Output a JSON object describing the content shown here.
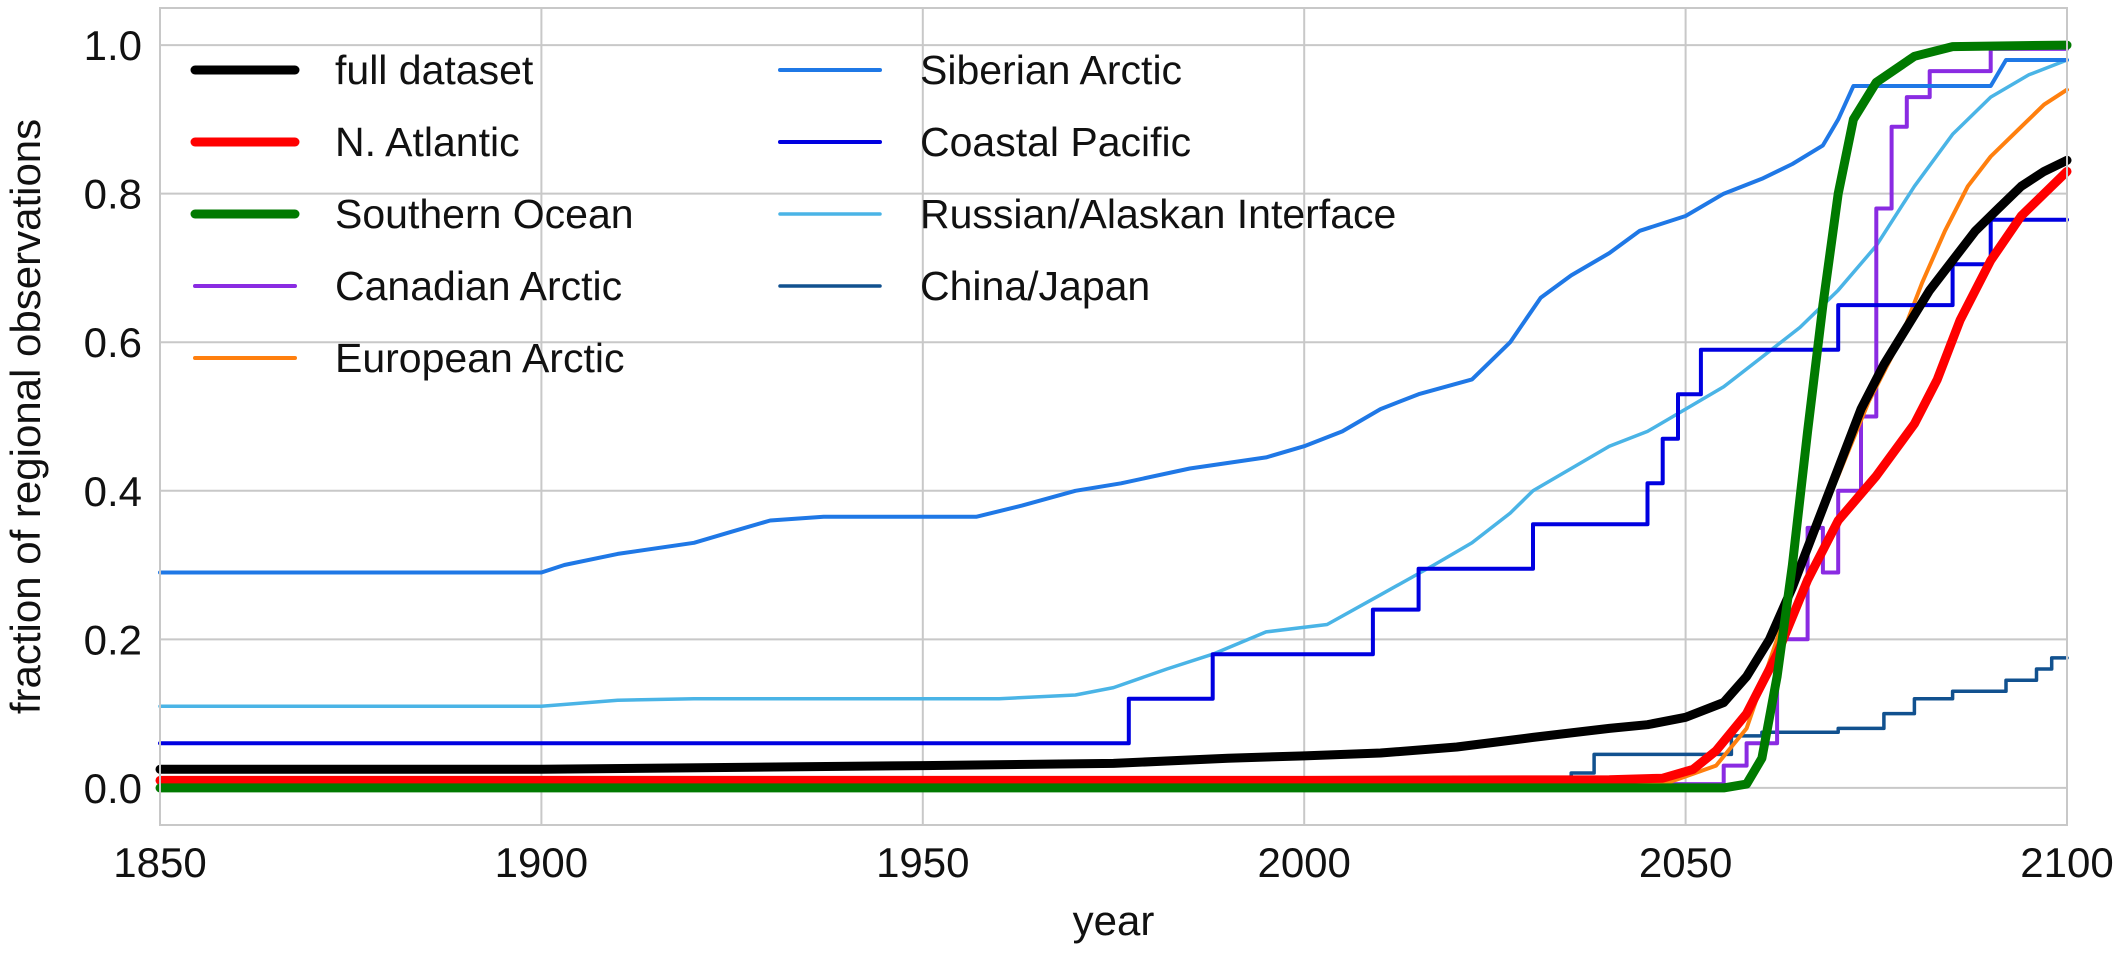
{
  "chart_data": {
    "type": "line",
    "title": "",
    "xlabel": "year",
    "ylabel": "fraction of regional observations",
    "xlim": [
      1850,
      2100
    ],
    "ylim": [
      -0.05,
      1.05
    ],
    "xticks": [
      1850,
      1900,
      1950,
      2000,
      2050,
      2100
    ],
    "yticks": [
      0.0,
      0.2,
      0.4,
      0.6,
      0.8,
      1.0
    ],
    "xtick_labels": [
      "1850",
      "1900",
      "1950",
      "2000",
      "2050",
      "2100"
    ],
    "ytick_labels": [
      "0.0",
      "0.2",
      "0.4",
      "0.6",
      "0.8",
      "1.0"
    ],
    "grid": true,
    "legend_position": "top-left",
    "series": [
      {
        "name": "full dataset",
        "color": "#000000",
        "width": 9,
        "step": false,
        "points": [
          [
            1850,
            0.025
          ],
          [
            1900,
            0.025
          ],
          [
            1950,
            0.03
          ],
          [
            1975,
            0.033
          ],
          [
            1990,
            0.04
          ],
          [
            2000,
            0.043
          ],
          [
            2010,
            0.047
          ],
          [
            2020,
            0.055
          ],
          [
            2030,
            0.068
          ],
          [
            2040,
            0.08
          ],
          [
            2045,
            0.085
          ],
          [
            2050,
            0.095
          ],
          [
            2055,
            0.115
          ],
          [
            2058,
            0.15
          ],
          [
            2061,
            0.2
          ],
          [
            2064,
            0.27
          ],
          [
            2067,
            0.35
          ],
          [
            2070,
            0.43
          ],
          [
            2073,
            0.51
          ],
          [
            2076,
            0.57
          ],
          [
            2079,
            0.62
          ],
          [
            2082,
            0.67
          ],
          [
            2085,
            0.71
          ],
          [
            2088,
            0.75
          ],
          [
            2091,
            0.78
          ],
          [
            2094,
            0.81
          ],
          [
            2097,
            0.83
          ],
          [
            2100,
            0.845
          ]
        ]
      },
      {
        "name": "N. Atlantic",
        "color": "#ff0000",
        "width": 9,
        "step": false,
        "points": [
          [
            1850,
            0.01
          ],
          [
            2000,
            0.01
          ],
          [
            2040,
            0.011
          ],
          [
            2047,
            0.013
          ],
          [
            2051,
            0.025
          ],
          [
            2054,
            0.05
          ],
          [
            2058,
            0.1
          ],
          [
            2062,
            0.18
          ],
          [
            2066,
            0.28
          ],
          [
            2070,
            0.36
          ],
          [
            2075,
            0.42
          ],
          [
            2080,
            0.49
          ],
          [
            2083,
            0.55
          ],
          [
            2086,
            0.63
          ],
          [
            2090,
            0.71
          ],
          [
            2094,
            0.77
          ],
          [
            2097,
            0.8
          ],
          [
            2100,
            0.83
          ]
        ]
      },
      {
        "name": "Southern Ocean",
        "color": "#007a00",
        "width": 9,
        "step": false,
        "points": [
          [
            1850,
            0.0
          ],
          [
            2055,
            0.0
          ],
          [
            2058,
            0.005
          ],
          [
            2060,
            0.04
          ],
          [
            2062,
            0.15
          ],
          [
            2064,
            0.3
          ],
          [
            2066,
            0.48
          ],
          [
            2068,
            0.65
          ],
          [
            2070,
            0.8
          ],
          [
            2072,
            0.9
          ],
          [
            2075,
            0.95
          ],
          [
            2080,
            0.985
          ],
          [
            2085,
            0.998
          ],
          [
            2100,
            1.0
          ]
        ]
      },
      {
        "name": "Canadian Arctic",
        "color": "#8a2be2",
        "width": 4,
        "step": true,
        "points": [
          [
            1850,
            0.005
          ],
          [
            2030,
            0.005
          ],
          [
            2055,
            0.005
          ],
          [
            2055,
            0.03
          ],
          [
            2058,
            0.03
          ],
          [
            2058,
            0.06
          ],
          [
            2062,
            0.06
          ],
          [
            2062,
            0.2
          ],
          [
            2066,
            0.2
          ],
          [
            2066,
            0.35
          ],
          [
            2068,
            0.35
          ],
          [
            2068,
            0.29
          ],
          [
            2070,
            0.29
          ],
          [
            2070,
            0.4
          ],
          [
            2073,
            0.4
          ],
          [
            2073,
            0.5
          ],
          [
            2075,
            0.5
          ],
          [
            2075,
            0.78
          ],
          [
            2077,
            0.78
          ],
          [
            2077,
            0.89
          ],
          [
            2079,
            0.89
          ],
          [
            2079,
            0.93
          ],
          [
            2082,
            0.93
          ],
          [
            2082,
            0.965
          ],
          [
            2090,
            0.965
          ],
          [
            2090,
            0.995
          ],
          [
            2100,
            0.995
          ]
        ]
      },
      {
        "name": "European Arctic",
        "color": "#ff7f0e",
        "width": 4,
        "step": false,
        "points": [
          [
            1850,
            0.002
          ],
          [
            2040,
            0.004
          ],
          [
            2048,
            0.008
          ],
          [
            2054,
            0.03
          ],
          [
            2058,
            0.08
          ],
          [
            2062,
            0.2
          ],
          [
            2066,
            0.33
          ],
          [
            2070,
            0.42
          ],
          [
            2074,
            0.52
          ],
          [
            2078,
            0.6
          ],
          [
            2081,
            0.68
          ],
          [
            2084,
            0.75
          ],
          [
            2087,
            0.81
          ],
          [
            2090,
            0.85
          ],
          [
            2094,
            0.89
          ],
          [
            2097,
            0.92
          ],
          [
            2100,
            0.94
          ]
        ]
      },
      {
        "name": "Siberian Arctic",
        "color": "#1f78e6",
        "width": 4,
        "step": false,
        "points": [
          [
            1850,
            0.29
          ],
          [
            1900,
            0.29
          ],
          [
            1903,
            0.3
          ],
          [
            1910,
            0.315
          ],
          [
            1920,
            0.33
          ],
          [
            1925,
            0.345
          ],
          [
            1930,
            0.36
          ],
          [
            1937,
            0.365
          ],
          [
            1950,
            0.365
          ],
          [
            1957,
            0.365
          ],
          [
            1963,
            0.38
          ],
          [
            1970,
            0.4
          ],
          [
            1976,
            0.41
          ],
          [
            1985,
            0.43
          ],
          [
            1995,
            0.445
          ],
          [
            2000,
            0.46
          ],
          [
            2005,
            0.48
          ],
          [
            2010,
            0.51
          ],
          [
            2015,
            0.53
          ],
          [
            2022,
            0.55
          ],
          [
            2027,
            0.6
          ],
          [
            2031,
            0.66
          ],
          [
            2035,
            0.69
          ],
          [
            2040,
            0.72
          ],
          [
            2044,
            0.75
          ],
          [
            2050,
            0.77
          ],
          [
            2055,
            0.8
          ],
          [
            2060,
            0.82
          ],
          [
            2064,
            0.84
          ],
          [
            2068,
            0.865
          ],
          [
            2070,
            0.9
          ],
          [
            2072,
            0.945
          ],
          [
            2090,
            0.945
          ],
          [
            2092,
            0.98
          ],
          [
            2100,
            0.98
          ]
        ]
      },
      {
        "name": "Coastal Pacific",
        "color": "#0000e0",
        "width": 4,
        "step": true,
        "points": [
          [
            1850,
            0.06
          ],
          [
            1977,
            0.06
          ],
          [
            1977,
            0.12
          ],
          [
            1988,
            0.12
          ],
          [
            1988,
            0.18
          ],
          [
            2009,
            0.18
          ],
          [
            2009,
            0.24
          ],
          [
            2015,
            0.24
          ],
          [
            2015,
            0.295
          ],
          [
            2030,
            0.295
          ],
          [
            2030,
            0.355
          ],
          [
            2045,
            0.355
          ],
          [
            2045,
            0.41
          ],
          [
            2047,
            0.41
          ],
          [
            2047,
            0.47
          ],
          [
            2049,
            0.47
          ],
          [
            2049,
            0.53
          ],
          [
            2052,
            0.53
          ],
          [
            2052,
            0.59
          ],
          [
            2070,
            0.59
          ],
          [
            2070,
            0.65
          ],
          [
            2085,
            0.65
          ],
          [
            2085,
            0.705
          ],
          [
            2090,
            0.705
          ],
          [
            2090,
            0.765
          ],
          [
            2100,
            0.765
          ]
        ]
      },
      {
        "name": "Russian/Alaskan Interface",
        "color": "#4ab4e6",
        "width": 3.5,
        "step": false,
        "points": [
          [
            1850,
            0.11
          ],
          [
            1900,
            0.11
          ],
          [
            1910,
            0.118
          ],
          [
            1920,
            0.12
          ],
          [
            1960,
            0.12
          ],
          [
            1970,
            0.125
          ],
          [
            1975,
            0.135
          ],
          [
            1982,
            0.16
          ],
          [
            1988,
            0.18
          ],
          [
            1995,
            0.21
          ],
          [
            2003,
            0.22
          ],
          [
            2010,
            0.26
          ],
          [
            2017,
            0.3
          ],
          [
            2022,
            0.33
          ],
          [
            2027,
            0.37
          ],
          [
            2030,
            0.4
          ],
          [
            2035,
            0.43
          ],
          [
            2040,
            0.46
          ],
          [
            2045,
            0.48
          ],
          [
            2050,
            0.51
          ],
          [
            2055,
            0.54
          ],
          [
            2060,
            0.58
          ],
          [
            2065,
            0.62
          ],
          [
            2070,
            0.67
          ],
          [
            2075,
            0.73
          ],
          [
            2080,
            0.81
          ],
          [
            2085,
            0.88
          ],
          [
            2090,
            0.93
          ],
          [
            2095,
            0.96
          ],
          [
            2100,
            0.98
          ]
        ]
      },
      {
        "name": "China/Japan",
        "color": "#11518f",
        "width": 3.5,
        "step": true,
        "points": [
          [
            1850,
            0.005
          ],
          [
            2035,
            0.005
          ],
          [
            2035,
            0.02
          ],
          [
            2038,
            0.02
          ],
          [
            2038,
            0.045
          ],
          [
            2056,
            0.045
          ],
          [
            2056,
            0.07
          ],
          [
            2060,
            0.07
          ],
          [
            2060,
            0.075
          ],
          [
            2070,
            0.075
          ],
          [
            2070,
            0.08
          ],
          [
            2076,
            0.08
          ],
          [
            2076,
            0.1
          ],
          [
            2080,
            0.1
          ],
          [
            2080,
            0.12
          ],
          [
            2085,
            0.12
          ],
          [
            2085,
            0.13
          ],
          [
            2092,
            0.13
          ],
          [
            2092,
            0.145
          ],
          [
            2096,
            0.145
          ],
          [
            2096,
            0.16
          ],
          [
            2098,
            0.16
          ],
          [
            2098,
            0.175
          ],
          [
            2100,
            0.175
          ]
        ]
      }
    ]
  }
}
